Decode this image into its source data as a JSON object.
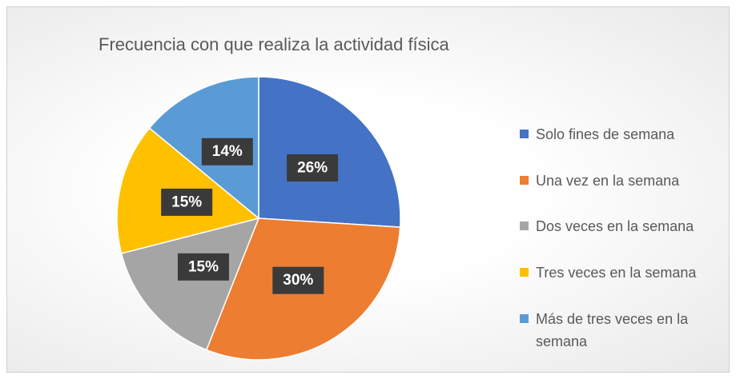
{
  "chart_data": {
    "type": "pie",
    "title": "Frecuencia con que realiza la actividad física",
    "categories": [
      "Solo fines de semana",
      "Una vez en la semana",
      "Dos veces en la semana",
      "Tres veces en la semana",
      "Más de tres veces en la semana"
    ],
    "values": [
      26,
      30,
      15,
      15,
      14
    ],
    "value_labels": [
      "26%",
      "30%",
      "15%",
      "15%",
      "14%"
    ],
    "colors": [
      "#4472c4",
      "#ed7d31",
      "#a5a5a5",
      "#ffc000",
      "#5b9bd5"
    ],
    "legend": "right"
  }
}
